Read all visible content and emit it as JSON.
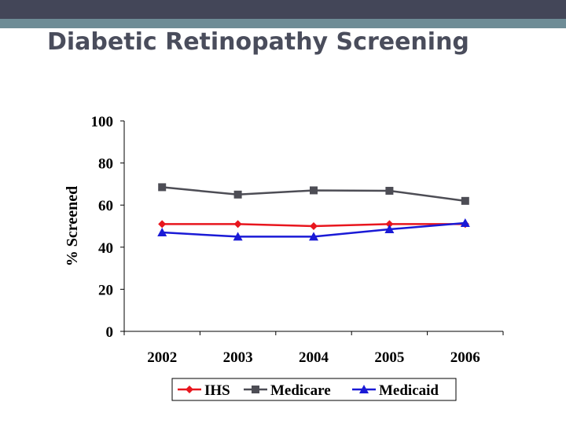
{
  "slide": {
    "title": "Diabetic Retinopathy Screening"
  },
  "chart_data": {
    "type": "line",
    "title": "",
    "xlabel": "",
    "ylabel": "% Screened",
    "categories": [
      "2002",
      "2003",
      "2004",
      "2005",
      "2006"
    ],
    "ylim": [
      0,
      100
    ],
    "yticks": [
      0,
      20,
      40,
      60,
      80,
      100
    ],
    "grid": false,
    "legend": "bottom",
    "series": [
      {
        "name": "IHS",
        "values": [
          51,
          51,
          50,
          51,
          51
        ],
        "color": "#e8161e",
        "marker": "diamond"
      },
      {
        "name": "Medicare",
        "values": [
          68.5,
          65,
          67,
          66.8,
          62
        ],
        "color": "#4d4d55",
        "marker": "square"
      },
      {
        "name": "Medicaid",
        "values": [
          47,
          45,
          45,
          48.5,
          51.5
        ],
        "color": "#1a1ad6",
        "marker": "triangle"
      }
    ]
  }
}
